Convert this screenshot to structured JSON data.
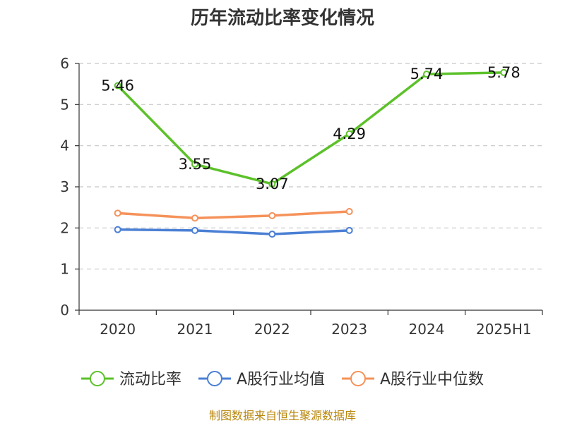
{
  "chart_data": {
    "type": "line",
    "title": "历年流动比率变化情况",
    "categories": [
      "2020",
      "2021",
      "2022",
      "2023",
      "2024",
      "2025H1"
    ],
    "y_ticks": [
      "0",
      "1",
      "2",
      "3",
      "4",
      "5",
      "6"
    ],
    "ylim": [
      0,
      6
    ],
    "grid": true,
    "legend_position": "bottom",
    "series": [
      {
        "name": "流动比率",
        "color": "#5cc12a",
        "values": [
          5.46,
          3.55,
          3.07,
          4.29,
          5.74,
          5.78
        ],
        "labels": [
          "5.46",
          "3.55",
          "3.07",
          "4.29",
          "5.74",
          "5.78"
        ]
      },
      {
        "name": "A股行业均值",
        "color": "#4a7fd4",
        "values": [
          1.96,
          1.94,
          1.85,
          1.94,
          null,
          null
        ]
      },
      {
        "name": "A股行业中位数",
        "color": "#f5925a",
        "values": [
          2.36,
          2.24,
          2.3,
          2.4,
          null,
          null
        ]
      }
    ],
    "source": "制图数据来自恒生聚源数据库"
  }
}
